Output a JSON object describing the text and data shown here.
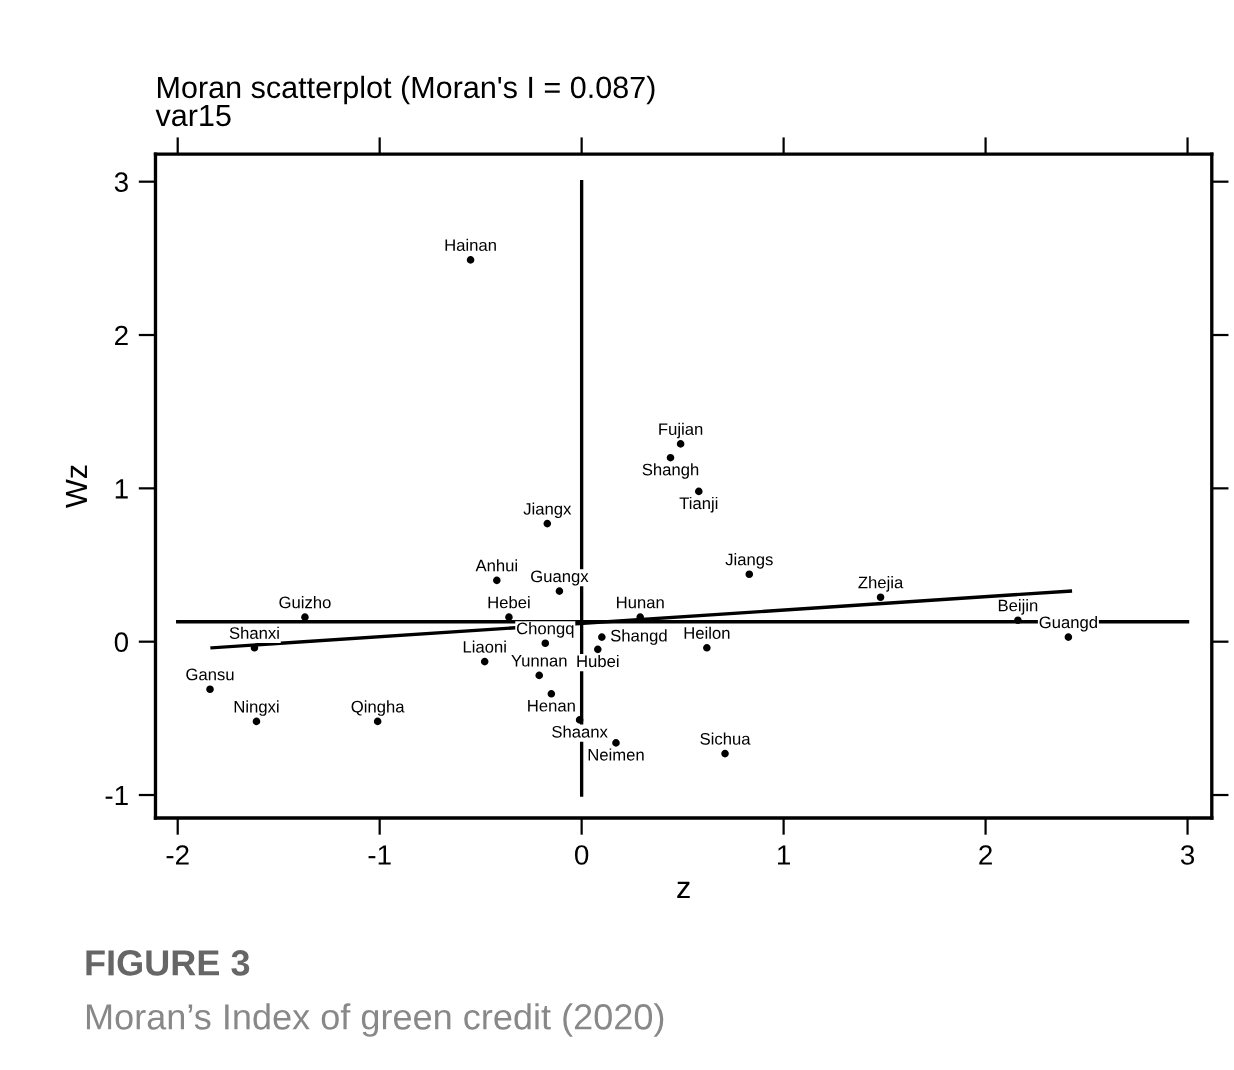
{
  "chart_data": {
    "type": "scatter",
    "title": "Moran scatterplot (Moran's I = 0.087)",
    "subtitle": "var15",
    "xlabel": "z",
    "ylabel": "Wz",
    "xlim": [
      -2.11,
      3.12
    ],
    "ylim": [
      -1.15,
      3.18
    ],
    "xticks": [
      -2,
      -1,
      0,
      1,
      2,
      3
    ],
    "yticks": [
      -1,
      0,
      1,
      2,
      3
    ],
    "grid": false,
    "ref_lines": [
      {
        "axis": "x",
        "value": 0,
        "color": "#000000"
      },
      {
        "axis": "y",
        "value": 0.13,
        "color": "#000000"
      }
    ],
    "series": [
      {
        "color": "#000000",
        "marker": "circle",
        "x": [
          -0.55,
          0.49,
          0.44,
          0.58,
          -0.17,
          0.83,
          -0.42,
          -0.11,
          1.48,
          -1.37,
          -0.36,
          0.29,
          2.16,
          -1.62,
          -0.18,
          0.1,
          0.08,
          0.62,
          2.41,
          -0.48,
          -0.21,
          -0.15,
          -1.84,
          -1.61,
          -1.01,
          -0.01,
          0.17,
          0.71
        ],
        "values": [
          2.49,
          1.29,
          1.2,
          0.98,
          0.77,
          0.44,
          0.4,
          0.33,
          0.29,
          0.16,
          0.16,
          0.16,
          0.14,
          -0.04,
          -0.01,
          0.03,
          -0.05,
          -0.04,
          0.03,
          -0.13,
          -0.22,
          -0.34,
          -0.31,
          -0.52,
          -0.52,
          -0.51,
          -0.66,
          -0.73
        ],
        "value_labels": [
          "Hainan",
          "Fujian",
          "Shangh",
          "Tianji",
          "Jiangx",
          "Jiangs",
          "Anhui",
          "Guangx",
          "Zhejia",
          "Guizho",
          "Hebei",
          "Hunan",
          "Beijin",
          "Shanxi",
          "Chongq",
          "Shangd",
          "Hubei",
          "Heilon",
          "Guangd",
          "Liaoni",
          "Yunnan",
          "Henan",
          "Gansu",
          "Ningxi",
          "Qingha",
          "Shaanx",
          "Neimen",
          "Sichua"
        ]
      },
      {
        "type": "line",
        "color": "#000000",
        "x": [
          -1.83,
          2.42
        ],
        "values": [
          -0.04,
          0.33
        ]
      }
    ],
    "annotations": [
      "FIGURE 3",
      "Moran’s Index of green credit (2020)"
    ]
  }
}
